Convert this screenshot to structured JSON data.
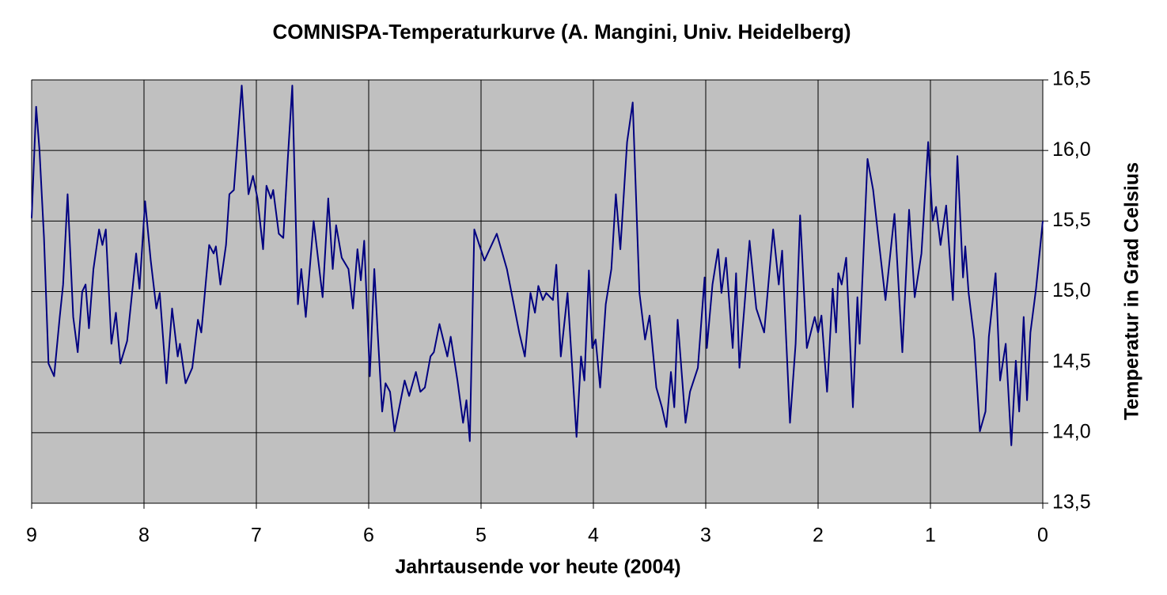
{
  "chart_data": {
    "type": "line",
    "title": "COMNISPA-Temperaturkurve (A. Mangini, Univ. Heidelberg)",
    "x_label": "Jahrtausende vor heute (2004)",
    "y_label": "Temperatur in Grad Celsius",
    "color": "#000080",
    "background": "#c0c0c0",
    "grid": true,
    "y_axis_side": "right",
    "xlim": [
      9,
      0
    ],
    "xticks": [
      9,
      8,
      7,
      6,
      5,
      4,
      3,
      2,
      1,
      0
    ],
    "ylim": [
      13.5,
      16.5
    ],
    "yticks": [
      {
        "value": 13.5,
        "label": "13,5"
      },
      {
        "value": 14,
        "label": "14,0"
      },
      {
        "value": 14.5,
        "label": "14,5"
      },
      {
        "value": 15,
        "label": "15,0"
      },
      {
        "value": 15.5,
        "label": "15,5"
      },
      {
        "value": 16,
        "label": "16,0"
      },
      {
        "value": 16.5,
        "label": "16,5"
      }
    ],
    "x": [
      9.0,
      8.96,
      8.93,
      8.89,
      8.85,
      8.8,
      8.75,
      8.72,
      8.68,
      8.63,
      8.59,
      8.55,
      8.52,
      8.49,
      8.45,
      8.4,
      8.37,
      8.34,
      8.29,
      8.25,
      8.21,
      8.15,
      8.07,
      8.04,
      7.99,
      7.94,
      7.89,
      7.86,
      7.8,
      7.75,
      7.7,
      7.68,
      7.63,
      7.57,
      7.52,
      7.49,
      7.42,
      7.38,
      7.36,
      7.32,
      7.27,
      7.24,
      7.2,
      7.13,
      7.07,
      7.03,
      6.99,
      6.94,
      6.91,
      6.87,
      6.85,
      6.8,
      6.76,
      6.72,
      6.68,
      6.63,
      6.6,
      6.56,
      6.49,
      6.41,
      6.36,
      6.32,
      6.29,
      6.24,
      6.18,
      6.14,
      6.1,
      6.07,
      6.04,
      5.99,
      5.95,
      5.92,
      5.88,
      5.85,
      5.81,
      5.77,
      5.68,
      5.64,
      5.58,
      5.54,
      5.5,
      5.45,
      5.42,
      5.37,
      5.3,
      5.27,
      5.21,
      5.16,
      5.13,
      5.1,
      5.06,
      4.97,
      4.86,
      4.77,
      4.66,
      4.61,
      4.56,
      4.52,
      4.49,
      4.45,
      4.42,
      4.36,
      4.33,
      4.29,
      4.23,
      4.15,
      4.11,
      4.08,
      4.04,
      4.01,
      3.98,
      3.94,
      3.89,
      3.84,
      3.8,
      3.76,
      3.7,
      3.65,
      3.59,
      3.54,
      3.5,
      3.44,
      3.39,
      3.35,
      3.31,
      3.28,
      3.25,
      3.18,
      3.14,
      3.07,
      3.01,
      2.99,
      2.94,
      2.89,
      2.86,
      2.82,
      2.76,
      2.73,
      2.7,
      2.66,
      2.61,
      2.55,
      2.48,
      2.4,
      2.35,
      2.32,
      2.25,
      2.2,
      2.16,
      2.1,
      2.03,
      2.0,
      1.97,
      1.92,
      1.87,
      1.84,
      1.82,
      1.79,
      1.75,
      1.69,
      1.65,
      1.63,
      1.56,
      1.51,
      1.46,
      1.4,
      1.32,
      1.25,
      1.19,
      1.14,
      1.08,
      1.02,
      0.98,
      0.95,
      0.91,
      0.86,
      0.8,
      0.76,
      0.71,
      0.69,
      0.66,
      0.61,
      0.56,
      0.51,
      0.48,
      0.42,
      0.38,
      0.33,
      0.28,
      0.24,
      0.21,
      0.17,
      0.14,
      0.11,
      0.06,
      0.0
    ],
    "values": [
      15.52,
      16.31,
      16.0,
      15.38,
      14.49,
      14.4,
      14.82,
      15.05,
      15.69,
      14.82,
      14.57,
      15.0,
      15.05,
      14.74,
      15.16,
      15.44,
      15.33,
      15.44,
      14.63,
      14.85,
      14.49,
      14.65,
      15.27,
      15.02,
      15.64,
      15.22,
      14.88,
      14.99,
      14.35,
      14.88,
      14.54,
      14.63,
      14.35,
      14.46,
      14.8,
      14.71,
      15.33,
      15.27,
      15.32,
      15.05,
      15.33,
      15.69,
      15.72,
      16.46,
      15.69,
      15.82,
      15.66,
      15.3,
      15.75,
      15.66,
      15.72,
      15.41,
      15.38,
      15.94,
      16.46,
      14.91,
      15.16,
      14.82,
      15.5,
      14.96,
      15.66,
      15.16,
      15.47,
      15.24,
      15.16,
      14.88,
      15.3,
      15.08,
      15.36,
      14.4,
      15.16,
      14.71,
      14.15,
      14.35,
      14.29,
      14.01,
      14.37,
      14.26,
      14.43,
      14.29,
      14.32,
      14.54,
      14.57,
      14.77,
      14.54,
      14.68,
      14.37,
      14.07,
      14.23,
      13.94,
      15.44,
      15.22,
      15.41,
      15.16,
      14.71,
      14.54,
      14.99,
      14.85,
      15.04,
      14.94,
      14.99,
      14.94,
      15.19,
      14.54,
      14.99,
      13.97,
      14.54,
      14.37,
      15.15,
      14.6,
      14.66,
      14.32,
      14.91,
      15.16,
      15.69,
      15.3,
      16.06,
      16.34,
      14.99,
      14.66,
      14.83,
      14.32,
      14.18,
      14.04,
      14.43,
      14.18,
      14.8,
      14.07,
      14.29,
      14.46,
      15.1,
      14.6,
      15.05,
      15.3,
      14.99,
      15.24,
      14.6,
      15.13,
      14.46,
      14.85,
      15.36,
      14.88,
      14.71,
      15.44,
      15.05,
      15.29,
      14.07,
      14.63,
      15.54,
      14.6,
      14.82,
      14.71,
      14.83,
      14.29,
      15.02,
      14.71,
      15.13,
      15.05,
      15.24,
      14.18,
      14.96,
      14.63,
      15.94,
      15.72,
      15.36,
      14.94,
      15.55,
      14.57,
      15.58,
      14.96,
      15.27,
      16.06,
      15.5,
      15.6,
      15.33,
      15.61,
      14.94,
      15.96,
      15.1,
      15.32,
      14.99,
      14.66,
      14.01,
      14.15,
      14.68,
      15.13,
      14.37,
      14.63,
      13.91,
      14.51,
      14.15,
      14.82,
      14.23,
      14.71,
      15.02,
      15.5
    ]
  }
}
